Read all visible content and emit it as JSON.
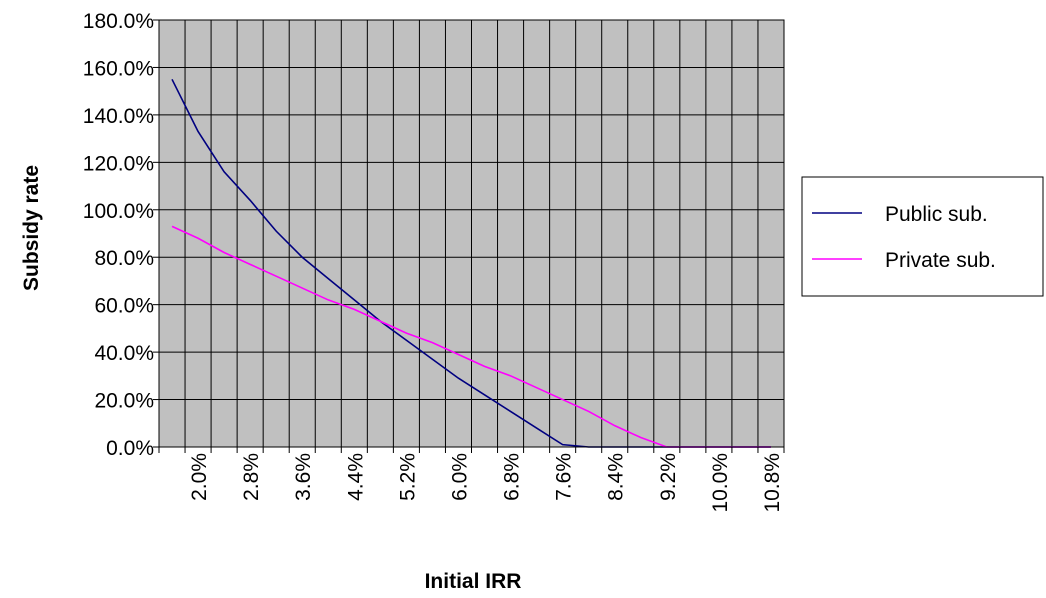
{
  "chart_data": {
    "type": "line",
    "xlabel": "Initial IRR",
    "ylabel": "Subsidy rate",
    "x_tick_labels": [
      "2.0%",
      "2.8%",
      "3.6%",
      "4.4%",
      "5.2%",
      "6.0%",
      "6.8%",
      "7.6%",
      "8.4%",
      "9.2%",
      "10.0%",
      "10.8%"
    ],
    "y_tick_labels": [
      "0.0%",
      "20.0%",
      "40.0%",
      "60.0%",
      "80.0%",
      "100.0%",
      "120.0%",
      "140.0%",
      "160.0%",
      "180.0%"
    ],
    "ylim": [
      0,
      180
    ],
    "x": [
      1.6,
      2.0,
      2.4,
      2.8,
      3.2,
      3.6,
      4.0,
      4.4,
      4.8,
      5.2,
      5.6,
      6.0,
      6.4,
      6.8,
      7.2,
      7.6,
      8.0,
      8.4,
      8.8,
      9.2,
      9.6,
      10.0,
      10.4,
      10.8
    ],
    "series": [
      {
        "name": "Public sub.",
        "color": "#000080",
        "values": [
          155,
          133,
          116,
          104,
          91,
          80,
          71,
          62,
          53,
          45,
          37,
          29,
          22,
          15,
          8,
          1,
          0,
          0,
          0,
          0,
          0,
          0,
          0,
          0
        ]
      },
      {
        "name": "Private sub.",
        "color": "#ff00ff",
        "values": [
          93,
          88,
          82,
          77,
          72,
          67,
          62,
          58,
          53,
          48,
          44,
          39,
          34,
          30,
          25,
          20,
          15,
          9,
          4,
          0,
          0,
          0,
          0,
          0
        ]
      }
    ],
    "grid": true,
    "legend_position": "right",
    "plot_background": "#c0c0c0"
  }
}
